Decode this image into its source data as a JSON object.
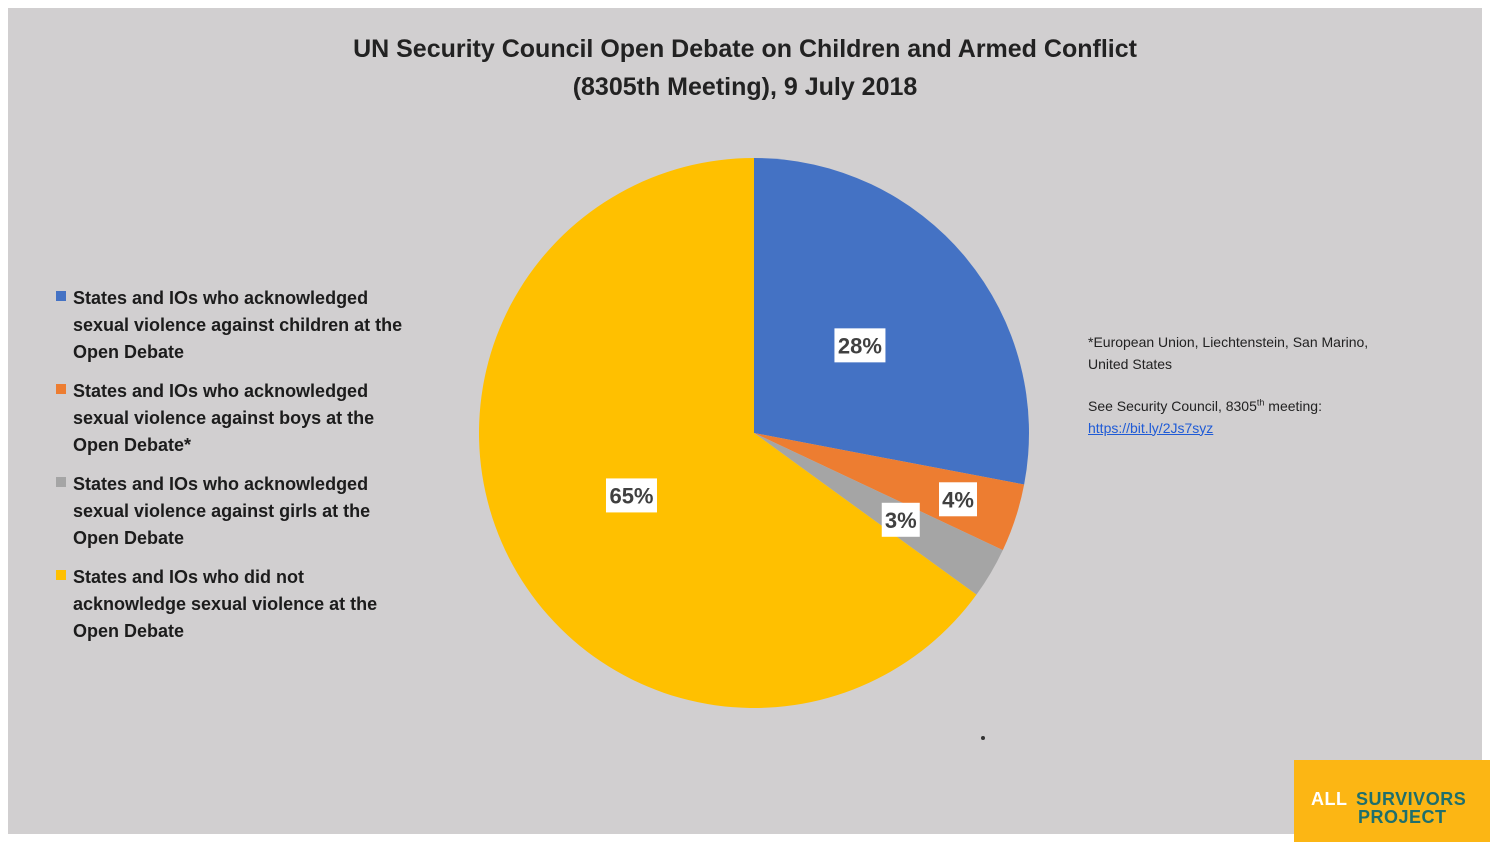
{
  "title_lines": [
    "UN Security Council Open Debate on Children and Armed Conflict",
    "(8305th Meeting), 9 July 2018"
  ],
  "notes": {
    "footnote": "*European Union, Liechtenstein, San Marino, United States",
    "reference_prefix": "See Security Council, 8305",
    "reference_sup": "th",
    "reference_suffix": " meeting:",
    "link_text": "https://bit.ly/2Js7syz"
  },
  "logo": {
    "word1": "ALL",
    "word2": "SURVIVORS",
    "word3": "PROJECT"
  },
  "colors": {
    "background": "#d1cfd0",
    "logo_background": "#fcb614"
  },
  "chart_data": {
    "type": "pie",
    "title": "UN Security Council Open Debate on Children and Armed Conflict (8305th Meeting), 9 July 2018",
    "legend_position": "left",
    "slices": [
      {
        "name": "States and IOs who acknowledged sexual violence against children at the Open Debate",
        "value": 28,
        "label": "28%",
        "color": "#4472c4"
      },
      {
        "name": "States and IOs who acknowledged sexual violence against boys at the Open Debate*",
        "value": 4,
        "label": "4%",
        "color": "#ed7d31"
      },
      {
        "name": "States and IOs who acknowledged sexual violence against girls at the Open Debate",
        "value": 3,
        "label": "3%",
        "color": "#a5a5a5"
      },
      {
        "name": "States and IOs who did not acknowledge sexual violence at the Open Debate",
        "value": 65,
        "label": "65%",
        "color": "#ffc000"
      }
    ]
  }
}
